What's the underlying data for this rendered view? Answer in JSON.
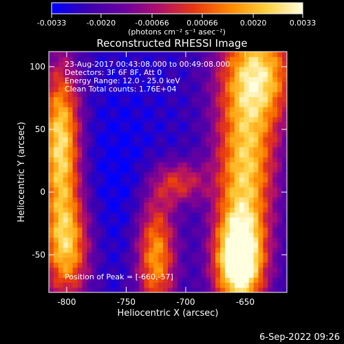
{
  "colorbar": {
    "min": -0.0033,
    "max": 0.0033,
    "ticks": [
      {
        "value": -0.0033,
        "label": "-0.0033"
      },
      {
        "value": -0.002,
        "label": "-0.0020"
      },
      {
        "value": -0.00066,
        "label": "-0.00066"
      },
      {
        "value": 0.00066,
        "label": "0.00066"
      },
      {
        "value": 0.002,
        "label": "0.0020"
      },
      {
        "value": 0.0033,
        "label": "0.0033"
      }
    ],
    "unit_label": "(photons cm⁻² s⁻¹ asec⁻²)",
    "colors": [
      "#0000ff",
      "#3a00b0",
      "#6a00a0",
      "#b0106a",
      "#e83a10",
      "#ff8a00",
      "#ffd040",
      "#ffffe0"
    ]
  },
  "chart_data": {
    "type": "heatmap",
    "title": "Reconstructed RHESSI Image",
    "xlabel": "Heliocentric X (arcsec)",
    "ylabel": "Heliocentric Y (arcsec)",
    "xlim": [
      -815,
      -615
    ],
    "ylim": [
      -80,
      112
    ],
    "xticks": [
      {
        "value": -800,
        "label": "-800"
      },
      {
        "value": -750,
        "label": "-750"
      },
      {
        "value": -700,
        "label": "-700"
      },
      {
        "value": -650,
        "label": "-650"
      }
    ],
    "yticks": [
      {
        "value": -50,
        "label": "-50"
      },
      {
        "value": 0,
        "label": "0"
      },
      {
        "value": 50,
        "label": "50"
      },
      {
        "value": 100,
        "label": "100"
      }
    ],
    "annotations": [
      "23-Aug-2017 00:43:08.000 to 00:49:08.000",
      "Detectors: 3F 6F 8F, Att 0",
      "Energy Range: 12.0 - 25.0 keV",
      "Clean    Total counts: 1.76E+04"
    ],
    "peak_label": "Position of Peak = [-660,-57]",
    "peak": {
      "x": -660,
      "y": -57
    }
  },
  "footer": {
    "date_stamp": "6-Sep-2022 09:26"
  }
}
